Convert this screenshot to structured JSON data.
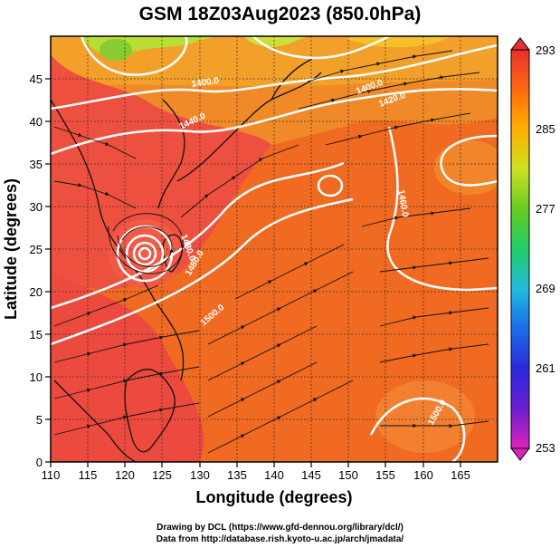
{
  "title": "GSM 18Z03Aug2023 (850.0hPa)",
  "xaxis": {
    "label": "Longitude (degrees)",
    "ticks": [
      "110",
      "115",
      "120",
      "125",
      "130",
      "135",
      "140",
      "145",
      "150",
      "155",
      "160",
      "165"
    ],
    "range": [
      110,
      170
    ]
  },
  "yaxis": {
    "label": "Latitude  (degrees)",
    "ticks": [
      "0",
      "5",
      "10",
      "15",
      "20",
      "25",
      "30",
      "35",
      "40",
      "45"
    ],
    "range": [
      0,
      50
    ]
  },
  "colorbar": {
    "ticks": [
      "253",
      "261",
      "269",
      "277",
      "285",
      "293"
    ],
    "range": [
      253,
      293
    ],
    "colors": [
      "#dd22bb",
      "#5522dd",
      "#1133dd",
      "#22aaee",
      "#22cc88",
      "#55cc22",
      "#aadd22",
      "#ffcc00",
      "#ff9900",
      "#ff6600",
      "#ee3311",
      "#dd2222"
    ]
  },
  "contour_labels": [
    "1400.0",
    "1420.0",
    "1440.0",
    "1460.0",
    "1480.0",
    "1500.0"
  ],
  "credits": {
    "line1": "Drawing by DCL (https://www.gfd-dennou.org/library/dcl/)",
    "line2": "Data from http://database.rish.kyoto-u.ac.jp/arch/jmadata/"
  },
  "features": {
    "typhoon_center": {
      "lon": 123.5,
      "lat": 26.8
    },
    "anticyclone_center": {
      "lon": 146,
      "lat": 35
    }
  }
}
